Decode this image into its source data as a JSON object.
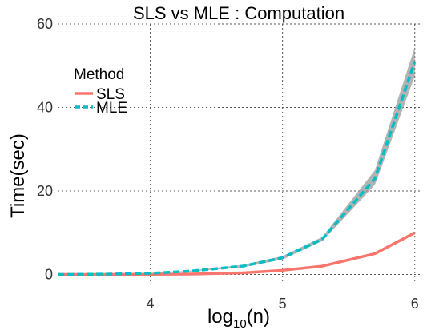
{
  "chart_data": {
    "type": "line",
    "title": "SLS vs MLE : Computation",
    "xlabel": {
      "base": "log",
      "sub": "10",
      "rest": "(n)"
    },
    "ylabel": "Time(sec)",
    "xlim": [
      3.3,
      6.05
    ],
    "ylim": [
      -2,
      60
    ],
    "x_ticks": [
      4,
      5,
      6
    ],
    "y_ticks": [
      0,
      20,
      40,
      60
    ],
    "x_tick_labels": [
      "4",
      "5",
      "6"
    ],
    "y_tick_labels": [
      "0",
      "20",
      "40",
      "60"
    ],
    "grid": true,
    "legend": {
      "title": "Method",
      "position": "top-left",
      "entries": [
        {
          "name": "SLS",
          "color": "#F8766D",
          "dash": "solid"
        },
        {
          "name": "MLE",
          "color": "#00BFC4",
          "dash": "dashed"
        }
      ]
    },
    "x": [
      3.301,
      3.699,
      4.0,
      4.301,
      4.699,
      5.0,
      5.301,
      5.699,
      6.0
    ],
    "series": [
      {
        "name": "SLS",
        "values": [
          0.0,
          0.02,
          0.05,
          0.1,
          0.4,
          1.0,
          2.0,
          5.0,
          10.0
        ],
        "band_low": [
          0.0,
          0.02,
          0.05,
          0.1,
          0.35,
          0.9,
          1.8,
          4.8,
          9.7
        ],
        "band_high": [
          0.0,
          0.02,
          0.05,
          0.1,
          0.45,
          1.1,
          2.2,
          5.2,
          10.3
        ]
      },
      {
        "name": "MLE",
        "values": [
          0.0,
          0.1,
          0.3,
          0.8,
          2.0,
          4.0,
          8.5,
          23.0,
          51.0
        ],
        "band_low": [
          0.0,
          0.08,
          0.25,
          0.7,
          1.7,
          3.6,
          8.0,
          21.5,
          47.5
        ],
        "band_high": [
          0.0,
          0.12,
          0.35,
          0.9,
          2.3,
          4.4,
          9.0,
          25.0,
          54.5
        ]
      }
    ],
    "band_color": "#999999"
  }
}
